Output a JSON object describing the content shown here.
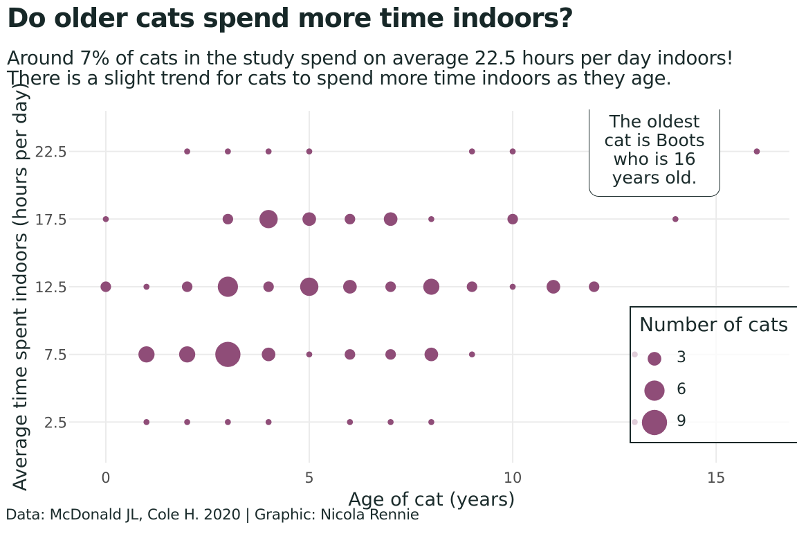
{
  "title": "Do older cats spend more time indoors?",
  "subtitle": "Around 7% of cats in the study spend on average 22.5 hours per day indoors! There is a slight trend for cats to spend more time indoors as they age.",
  "caption": "Data: McDonald JL, Cole H. 2020 | Graphic: Nicola Rennie",
  "annotation": {
    "lines": [
      "The oldest",
      "cat is Boots",
      "who is 16",
      "years old."
    ]
  },
  "legend": {
    "title": "Number of cats",
    "items": [
      {
        "label": "3",
        "value": 3
      },
      {
        "label": "6",
        "value": 6
      },
      {
        "label": "9",
        "value": 9
      }
    ]
  },
  "colors": {
    "point": "#8f4d78",
    "grid": "#ebebeb",
    "text": "#1a2b2b",
    "tick_text": "#4d4d4d"
  },
  "chart_data": {
    "type": "scatter",
    "title": "Do older cats spend more time indoors?",
    "xlabel": "Age of cat (years)",
    "ylabel": "Average time spent indoors (hours per day)",
    "xlim": [
      -0.9,
      16.8
    ],
    "ylim": [
      -0.5,
      25.5
    ],
    "xticks": [
      0,
      5,
      10,
      15
    ],
    "xtick_labels": [
      "0",
      "5",
      "10",
      "15"
    ],
    "yticks": [
      2.5,
      7.5,
      12.5,
      17.5,
      22.5
    ],
    "ytick_labels": [
      "2.5",
      "7.5",
      "12.5",
      "17.5",
      "22.5"
    ],
    "grid": true,
    "legend_position": "right",
    "size_variable": "Number of cats",
    "points": [
      {
        "x": 2,
        "y": 22.5,
        "n": 1
      },
      {
        "x": 3,
        "y": 22.5,
        "n": 1
      },
      {
        "x": 4,
        "y": 22.5,
        "n": 1
      },
      {
        "x": 5,
        "y": 22.5,
        "n": 1
      },
      {
        "x": 9,
        "y": 22.5,
        "n": 1
      },
      {
        "x": 10,
        "y": 22.5,
        "n": 1
      },
      {
        "x": 16,
        "y": 22.5,
        "n": 1
      },
      {
        "x": 0,
        "y": 17.5,
        "n": 1
      },
      {
        "x": 3,
        "y": 17.5,
        "n": 2
      },
      {
        "x": 4,
        "y": 17.5,
        "n": 5
      },
      {
        "x": 5,
        "y": 17.5,
        "n": 3
      },
      {
        "x": 6,
        "y": 17.5,
        "n": 2
      },
      {
        "x": 7,
        "y": 17.5,
        "n": 3
      },
      {
        "x": 8,
        "y": 17.5,
        "n": 1
      },
      {
        "x": 10,
        "y": 17.5,
        "n": 2
      },
      {
        "x": 14,
        "y": 17.5,
        "n": 1
      },
      {
        "x": 0,
        "y": 12.5,
        "n": 2
      },
      {
        "x": 1,
        "y": 12.5,
        "n": 1
      },
      {
        "x": 2,
        "y": 12.5,
        "n": 2
      },
      {
        "x": 3,
        "y": 12.5,
        "n": 6
      },
      {
        "x": 4,
        "y": 12.5,
        "n": 2
      },
      {
        "x": 5,
        "y": 12.5,
        "n": 5
      },
      {
        "x": 6,
        "y": 12.5,
        "n": 3
      },
      {
        "x": 7,
        "y": 12.5,
        "n": 2
      },
      {
        "x": 8,
        "y": 12.5,
        "n": 4
      },
      {
        "x": 9,
        "y": 12.5,
        "n": 2
      },
      {
        "x": 10,
        "y": 12.5,
        "n": 1
      },
      {
        "x": 11,
        "y": 12.5,
        "n": 3
      },
      {
        "x": 12,
        "y": 12.5,
        "n": 2
      },
      {
        "x": 1,
        "y": 7.5,
        "n": 4
      },
      {
        "x": 2,
        "y": 7.5,
        "n": 4
      },
      {
        "x": 3,
        "y": 7.5,
        "n": 9
      },
      {
        "x": 4,
        "y": 7.5,
        "n": 3
      },
      {
        "x": 5,
        "y": 7.5,
        "n": 1
      },
      {
        "x": 6,
        "y": 7.5,
        "n": 2
      },
      {
        "x": 7,
        "y": 7.5,
        "n": 2
      },
      {
        "x": 8,
        "y": 7.5,
        "n": 3
      },
      {
        "x": 9,
        "y": 7.5,
        "n": 1
      },
      {
        "x": 13,
        "y": 7.5,
        "n": 1
      },
      {
        "x": 1,
        "y": 2.5,
        "n": 1
      },
      {
        "x": 2,
        "y": 2.5,
        "n": 1
      },
      {
        "x": 3,
        "y": 2.5,
        "n": 1
      },
      {
        "x": 4,
        "y": 2.5,
        "n": 1
      },
      {
        "x": 6,
        "y": 2.5,
        "n": 1
      },
      {
        "x": 7,
        "y": 2.5,
        "n": 1
      },
      {
        "x": 8,
        "y": 2.5,
        "n": 1
      },
      {
        "x": 13,
        "y": 2.5,
        "n": 1
      }
    ]
  }
}
